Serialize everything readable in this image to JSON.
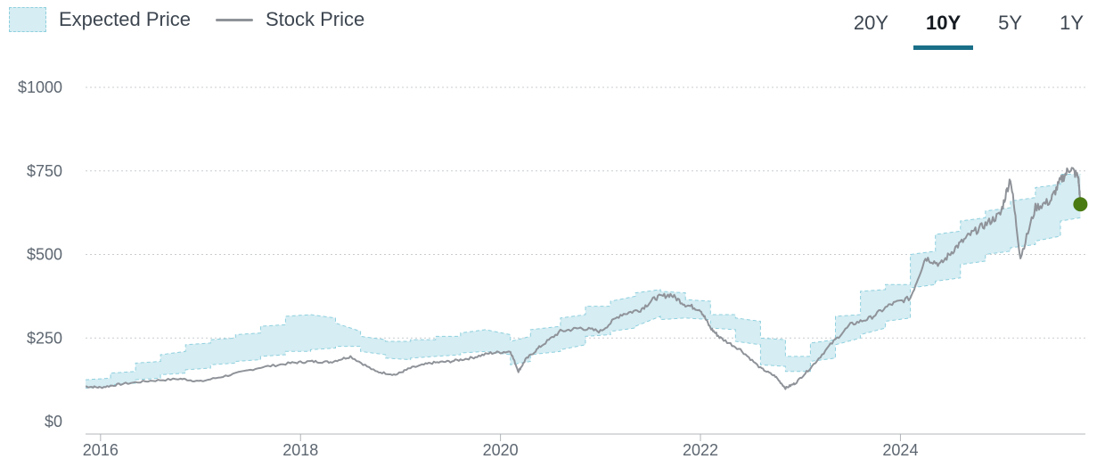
{
  "legend": {
    "expected_label": "Expected Price",
    "stock_label": "Stock Price"
  },
  "range_buttons": [
    {
      "label": "20Y",
      "active": false
    },
    {
      "label": "10Y",
      "active": true
    },
    {
      "label": "5Y",
      "active": false
    },
    {
      "label": "1Y",
      "active": false
    }
  ],
  "colors": {
    "band_fill": "#d5edf3",
    "band_stroke": "#8fd0de",
    "stock_line": "#8f9399",
    "marker": "#4a7a12",
    "grid": "#c8ccd0",
    "axis": "#b0b4b8",
    "active_underline": "#1a6f88"
  },
  "chart_data": {
    "type": "area",
    "title": "",
    "xlabel": "",
    "ylabel": "",
    "xlim": [
      2015.85,
      2025.85
    ],
    "ylim": [
      0,
      1000
    ],
    "yticks": [
      0,
      250,
      500,
      750,
      1000
    ],
    "ytick_labels": [
      "$0",
      "$250",
      "$500",
      "$750",
      "$1000"
    ],
    "xticks": [
      2016,
      2018,
      2020,
      2022,
      2024
    ],
    "xtick_labels": [
      "2016",
      "2018",
      "2020",
      "2022",
      "2024"
    ],
    "grid": true,
    "series": [
      {
        "name": "Expected Price",
        "kind": "band",
        "x": [
          2015.85,
          2016.1,
          2016.1,
          2016.35,
          2016.35,
          2016.6,
          2016.6,
          2016.85,
          2016.85,
          2017.1,
          2017.1,
          2017.35,
          2017.35,
          2017.6,
          2017.6,
          2017.85,
          2017.85,
          2018.1,
          2018.1,
          2018.35,
          2018.35,
          2018.6,
          2018.6,
          2018.85,
          2018.85,
          2019.1,
          2019.1,
          2019.35,
          2019.35,
          2019.6,
          2019.6,
          2019.85,
          2019.85,
          2020.1,
          2020.1,
          2020.3,
          2020.3,
          2020.6,
          2020.6,
          2020.85,
          2020.85,
          2021.1,
          2021.1,
          2021.35,
          2021.35,
          2021.6,
          2021.6,
          2021.85,
          2021.85,
          2022.1,
          2022.1,
          2022.35,
          2022.35,
          2022.6,
          2022.6,
          2022.85,
          2022.85,
          2023.1,
          2023.1,
          2023.35,
          2023.35,
          2023.6,
          2023.6,
          2023.85,
          2023.85,
          2024.1,
          2024.1,
          2024.35,
          2024.35,
          2024.6,
          2024.6,
          2024.85,
          2024.85,
          2025.1,
          2025.1,
          2025.35,
          2025.35,
          2025.6,
          2025.6,
          2025.8
        ],
        "low": [
          100,
          105,
          110,
          115,
          125,
          130,
          140,
          145,
          155,
          160,
          170,
          175,
          180,
          185,
          195,
          200,
          210,
          210,
          215,
          220,
          225,
          225,
          210,
          200,
          190,
          185,
          190,
          195,
          195,
          200,
          205,
          210,
          210,
          200,
          170,
          180,
          200,
          210,
          215,
          230,
          255,
          260,
          270,
          280,
          285,
          315,
          305,
          310,
          310,
          305,
          280,
          275,
          240,
          230,
          170,
          165,
          150,
          150,
          180,
          190,
          230,
          250,
          260,
          280,
          300,
          310,
          400,
          410,
          420,
          430,
          470,
          480,
          500,
          510,
          520,
          530,
          540,
          555,
          600,
          610
        ],
        "high": [
          125,
          130,
          145,
          150,
          175,
          180,
          200,
          210,
          230,
          235,
          245,
          250,
          260,
          265,
          285,
          290,
          315,
          320,
          320,
          310,
          295,
          270,
          255,
          245,
          240,
          240,
          245,
          245,
          255,
          255,
          265,
          275,
          275,
          260,
          240,
          255,
          275,
          285,
          310,
          320,
          345,
          345,
          360,
          375,
          385,
          395,
          390,
          385,
          365,
          360,
          320,
          320,
          310,
          300,
          250,
          245,
          195,
          195,
          235,
          245,
          315,
          320,
          390,
          395,
          410,
          410,
          500,
          510,
          560,
          570,
          600,
          610,
          630,
          640,
          660,
          670,
          700,
          710,
          740,
          740
        ]
      },
      {
        "name": "Stock Price",
        "kind": "line",
        "x": [
          2015.85,
          2016.0,
          2016.2,
          2016.5,
          2016.8,
          2017.0,
          2017.3,
          2017.6,
          2017.9,
          2018.1,
          2018.3,
          2018.5,
          2018.75,
          2018.95,
          2019.1,
          2019.3,
          2019.5,
          2019.7,
          2019.9,
          2020.1,
          2020.18,
          2020.25,
          2020.4,
          2020.6,
          2020.8,
          2021.0,
          2021.2,
          2021.4,
          2021.55,
          2021.7,
          2021.85,
          2022.0,
          2022.1,
          2022.2,
          2022.4,
          2022.6,
          2022.75,
          2022.85,
          2022.95,
          2023.1,
          2023.3,
          2023.5,
          2023.7,
          2023.9,
          2024.1,
          2024.25,
          2024.4,
          2024.55,
          2024.7,
          2024.85,
          2025.0,
          2025.1,
          2025.2,
          2025.35,
          2025.5,
          2025.6,
          2025.7,
          2025.78,
          2025.8
        ],
        "values": [
          105,
          102,
          112,
          122,
          128,
          120,
          140,
          162,
          175,
          180,
          178,
          195,
          150,
          140,
          160,
          175,
          180,
          190,
          205,
          210,
          150,
          185,
          225,
          270,
          280,
          270,
          320,
          335,
          370,
          380,
          350,
          335,
          280,
          250,
          215,
          160,
          135,
          100,
          115,
          160,
          230,
          290,
          310,
          350,
          370,
          490,
          470,
          520,
          560,
          590,
          620,
          730,
          490,
          640,
          660,
          720,
          760,
          730,
          650
        ]
      }
    ],
    "marker": {
      "x": 2025.8,
      "y": 650
    }
  }
}
